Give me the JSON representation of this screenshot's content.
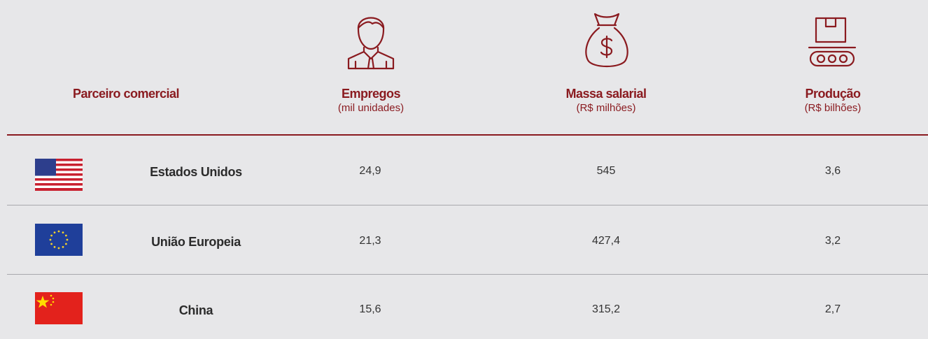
{
  "table": {
    "columns": [
      {
        "title": "Parceiro comercial"
      },
      {
        "title": "Empregos",
        "unit": "(mil unidades)"
      },
      {
        "title": "Massa salarial",
        "unit": "(R$ milhões)"
      },
      {
        "title": "Produção",
        "unit": "(R$ bilhões)"
      }
    ],
    "rows": [
      [
        "Estados Unidos",
        "24,9",
        "545",
        "3,6"
      ],
      [
        "União Europeia",
        "21,3",
        "427,4",
        "3,2"
      ],
      [
        "China",
        "15,6",
        "315,2",
        "2,7"
      ]
    ]
  }
}
